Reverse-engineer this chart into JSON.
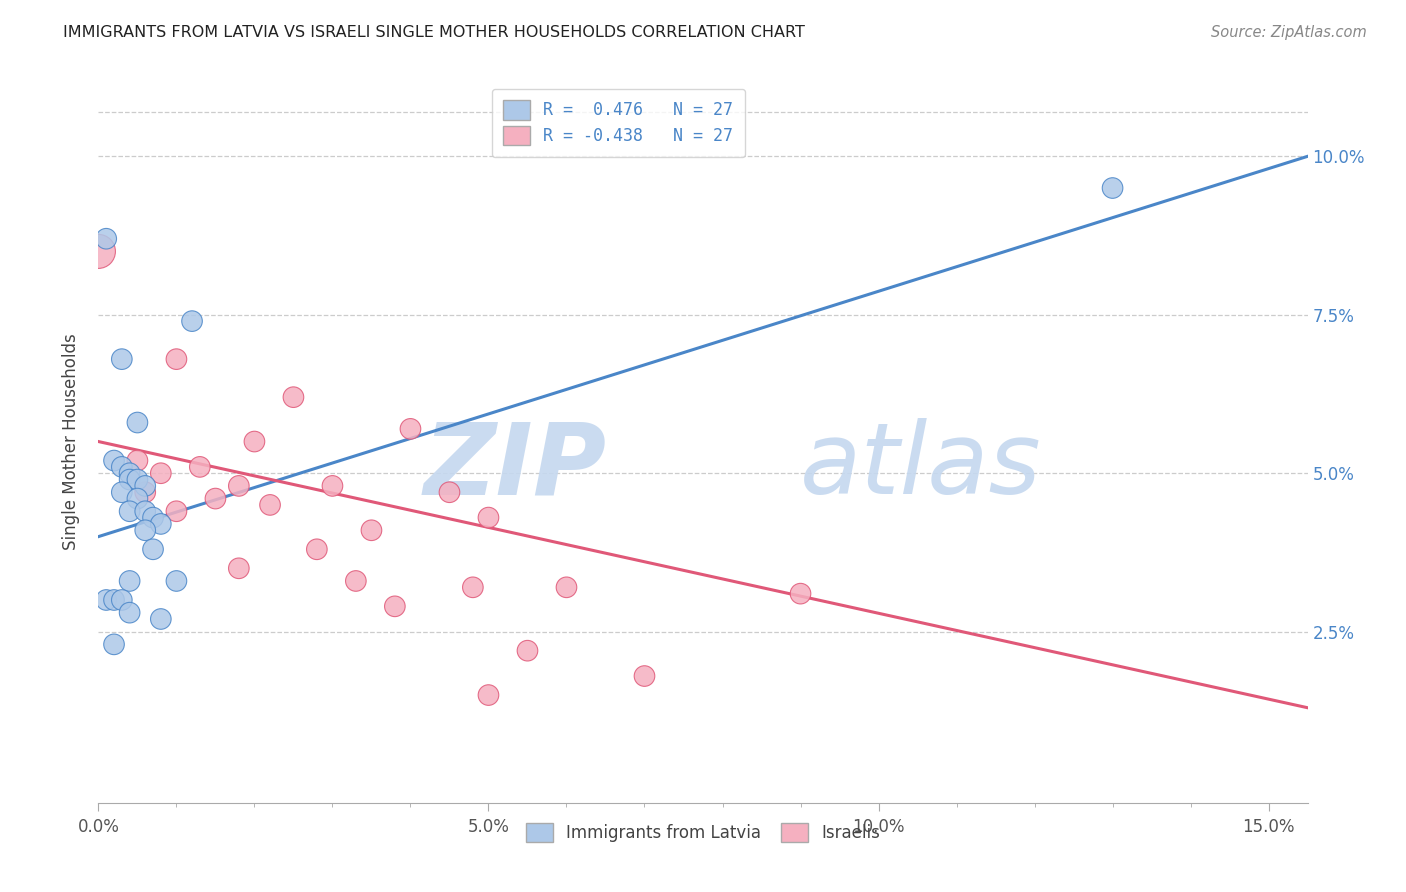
{
  "title": "IMMIGRANTS FROM LATVIA VS ISRAELI SINGLE MOTHER HOUSEHOLDS CORRELATION CHART",
  "source": "Source: ZipAtlas.com",
  "ylabel": "Single Mother Households",
  "xlim": [
    0.0,
    0.155
  ],
  "ylim": [
    -0.002,
    0.112
  ],
  "xticks_major": [
    0.0,
    0.05,
    0.1,
    0.15
  ],
  "xticklabels_major": [
    "0.0%",
    "5.0%",
    "10.0%",
    "15.0%"
  ],
  "yticks_right": [
    0.025,
    0.05,
    0.075,
    0.1
  ],
  "yticklabels_right": [
    "2.5%",
    "5.0%",
    "7.5%",
    "10.0%"
  ],
  "color_blue": "#adc8e8",
  "color_pink": "#f5b0c0",
  "line_blue": "#4a86c8",
  "line_pink": "#e05878",
  "watermark_zip": "ZIP",
  "watermark_atlas": "atlas",
  "blue_scatter_x": [
    0.001,
    0.012,
    0.003,
    0.005,
    0.002,
    0.003,
    0.004,
    0.004,
    0.005,
    0.006,
    0.003,
    0.005,
    0.004,
    0.006,
    0.007,
    0.008,
    0.006,
    0.007,
    0.004,
    0.01,
    0.001,
    0.002,
    0.003,
    0.004,
    0.008,
    0.002,
    0.13
  ],
  "blue_scatter_y": [
    0.087,
    0.074,
    0.068,
    0.058,
    0.052,
    0.051,
    0.05,
    0.049,
    0.049,
    0.048,
    0.047,
    0.046,
    0.044,
    0.044,
    0.043,
    0.042,
    0.041,
    0.038,
    0.033,
    0.033,
    0.03,
    0.03,
    0.03,
    0.028,
    0.027,
    0.023,
    0.095
  ],
  "pink_scatter_x": [
    0.0,
    0.01,
    0.025,
    0.04,
    0.02,
    0.005,
    0.013,
    0.008,
    0.018,
    0.03,
    0.006,
    0.045,
    0.015,
    0.022,
    0.01,
    0.05,
    0.035,
    0.028,
    0.018,
    0.033,
    0.048,
    0.06,
    0.09,
    0.038,
    0.055,
    0.07,
    0.05
  ],
  "pink_scatter_y": [
    0.085,
    0.068,
    0.062,
    0.057,
    0.055,
    0.052,
    0.051,
    0.05,
    0.048,
    0.048,
    0.047,
    0.047,
    0.046,
    0.045,
    0.044,
    0.043,
    0.041,
    0.038,
    0.035,
    0.033,
    0.032,
    0.032,
    0.031,
    0.029,
    0.022,
    0.018,
    0.015
  ],
  "blue_line_x": [
    0.0,
    0.155
  ],
  "blue_line_y": [
    0.04,
    0.1
  ],
  "pink_line_x": [
    0.0,
    0.155
  ],
  "pink_line_y": [
    0.055,
    0.013
  ],
  "legend1_labels": [
    "R =  0.476   N = 27",
    "R = -0.438   N = 27"
  ],
  "bottom_labels": [
    "Immigrants from Latvia",
    "Israelis"
  ]
}
